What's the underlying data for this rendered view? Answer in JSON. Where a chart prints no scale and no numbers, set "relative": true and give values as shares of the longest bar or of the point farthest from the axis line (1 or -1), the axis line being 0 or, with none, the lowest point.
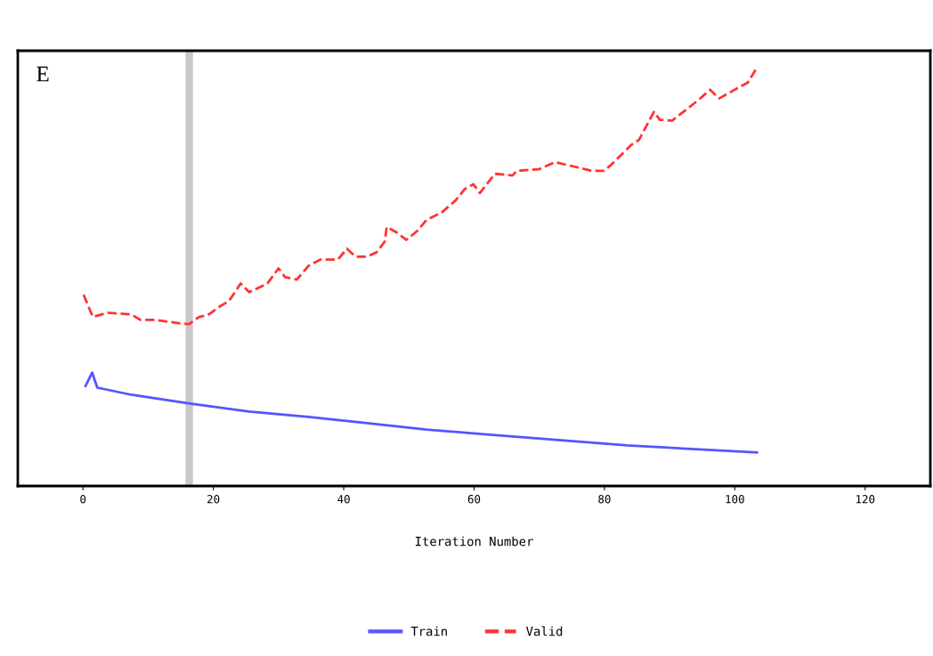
{
  "chart_data": {
    "type": "line",
    "relative": true,
    "xlabel": "Iteration Number",
    "annotations": [
      "E"
    ],
    "xlim": [
      -10,
      130
    ],
    "xticks": [
      0,
      20,
      40,
      60,
      80,
      100,
      120
    ],
    "grid": false,
    "legend": "bottom",
    "tick_labels": "x",
    "ref_lines": [
      {
        "axis": "x",
        "value": 16.3,
        "color": "#c8c8c8"
      }
    ],
    "series": [
      {
        "name": "Train",
        "color": "#5555ff",
        "line_style": "solid",
        "x": [
          0.4,
          1.4,
          2.2,
          7.4,
          16.4,
          25.5,
          34.6,
          43.6,
          52.7,
          62,
          83.5,
          103.4
        ],
        "values": [
          0.239,
          0.271,
          0.235,
          0.218,
          0.197,
          0.178,
          0.165,
          0.15,
          0.135,
          0.123,
          0.097,
          0.08
        ]
      },
      {
        "name": "Valid",
        "color": "#ff3333",
        "line_style": "dashed",
        "x": [
          0.1,
          1.5,
          3.8,
          7.4,
          8.8,
          11,
          14.7,
          16.3,
          17.8,
          19.1,
          21,
          22.4,
          24.2,
          25.5,
          28.3,
          30,
          31,
          32.8,
          34.6,
          36.4,
          39.1,
          40.5,
          41.8,
          43.6,
          45,
          46.3,
          46.6,
          48.2,
          49.6,
          51.4,
          52.7,
          55,
          57.2,
          58.6,
          59.9,
          60.9,
          63.2,
          65.9,
          66.6,
          70,
          72.4,
          75.4,
          78,
          79.9,
          81,
          84.2,
          85.3,
          87.6,
          88.5,
          90.4,
          94.4,
          96.2,
          97.6,
          100.7,
          102,
          103.4
        ],
        "values": [
          0.457,
          0.404,
          0.414,
          0.41,
          0.397,
          0.397,
          0.389,
          0.387,
          0.404,
          0.408,
          0.429,
          0.442,
          0.484,
          0.463,
          0.484,
          0.52,
          0.499,
          0.493,
          0.526,
          0.541,
          0.541,
          0.567,
          0.548,
          0.548,
          0.558,
          0.584,
          0.619,
          0.605,
          0.588,
          0.611,
          0.636,
          0.653,
          0.683,
          0.71,
          0.721,
          0.7,
          0.746,
          0.742,
          0.753,
          0.757,
          0.774,
          0.763,
          0.753,
          0.753,
          0.767,
          0.816,
          0.827,
          0.894,
          0.875,
          0.873,
          0.922,
          0.947,
          0.926,
          0.953,
          0.964,
          1
        ]
      }
    ]
  }
}
